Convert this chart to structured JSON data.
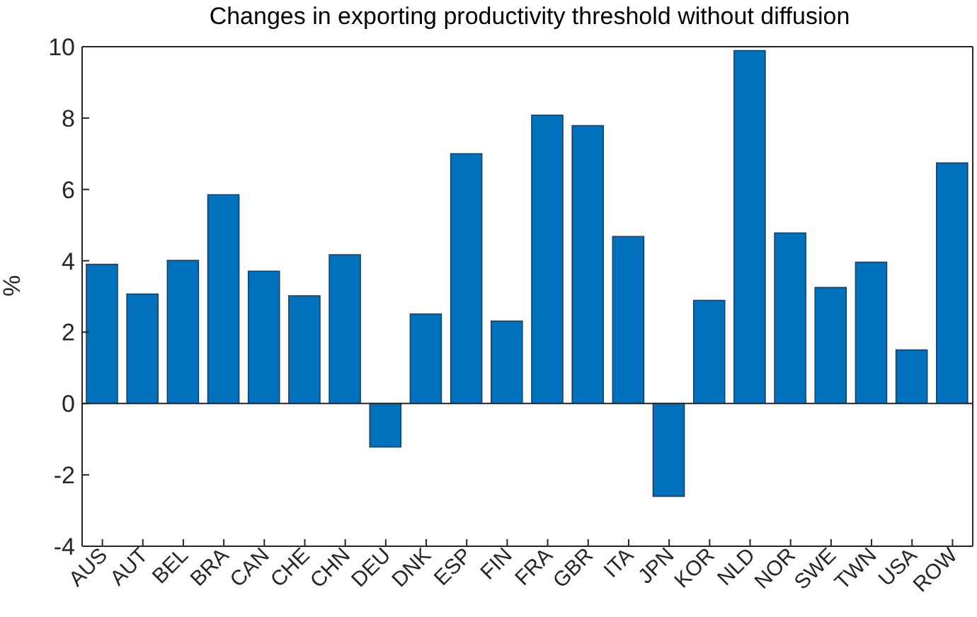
{
  "chart_data": {
    "type": "bar",
    "title": "Changes in exporting productivity threshold without diffusion",
    "ylabel": "%",
    "categories": [
      "AUS",
      "AUT",
      "BEL",
      "BRA",
      "CAN",
      "CHE",
      "CHN",
      "DEU",
      "DNK",
      "ESP",
      "FIN",
      "FRA",
      "GBR",
      "ITA",
      "JPN",
      "KOR",
      "NLD",
      "NOR",
      "SWE",
      "TWN",
      "USA",
      "ROW"
    ],
    "values": [
      3.9,
      3.07,
      4.01,
      5.85,
      3.71,
      3.02,
      4.17,
      -1.22,
      2.51,
      7.0,
      2.31,
      8.08,
      7.79,
      4.68,
      -2.6,
      2.89,
      9.89,
      4.78,
      3.25,
      3.96,
      1.5,
      6.74
    ],
    "color": "#0072bd",
    "ylim": [
      -4,
      10
    ],
    "yticks": [
      -4,
      -2,
      0,
      2,
      4,
      6,
      8,
      10
    ],
    "ref_lines": [
      {
        "axis": "y",
        "value": 0,
        "color": "#262626"
      }
    ]
  }
}
